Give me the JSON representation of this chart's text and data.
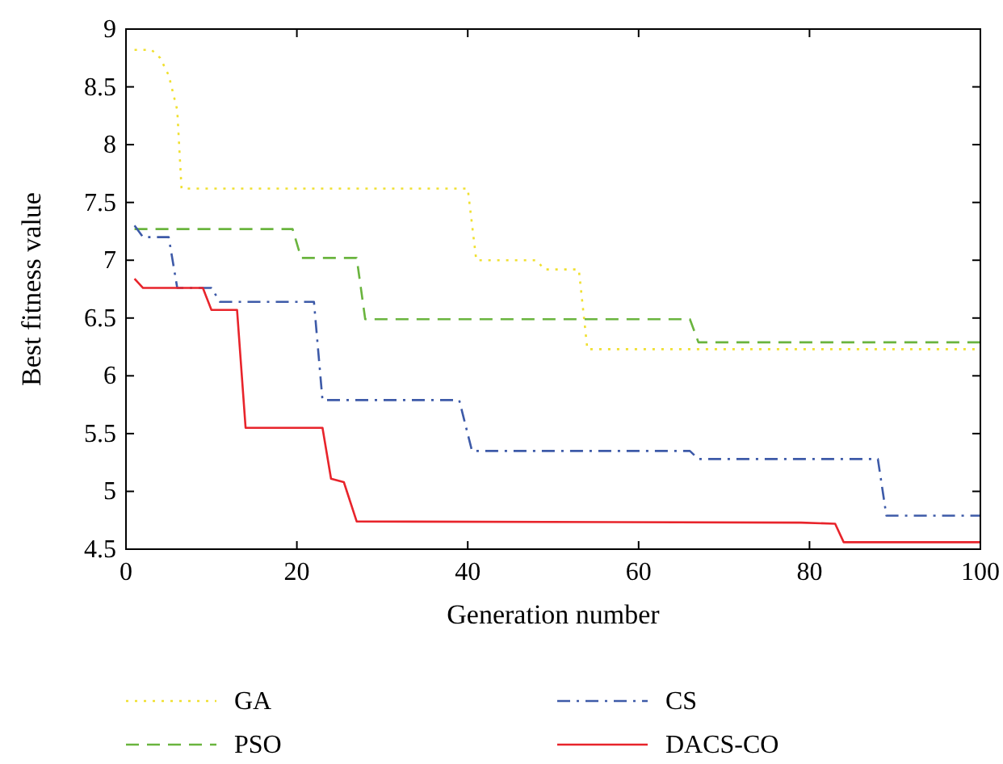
{
  "chart_data": {
    "type": "line",
    "xlabel": "Generation number",
    "ylabel": "Best fitness value",
    "xlim": [
      0,
      100
    ],
    "ylim": [
      4.5,
      9
    ],
    "xticks": [
      0,
      20,
      40,
      60,
      80,
      100
    ],
    "yticks": [
      4.5,
      5,
      5.5,
      6,
      6.5,
      7,
      7.5,
      8,
      8.5,
      9
    ],
    "grid": false,
    "legend": "bottom",
    "series": [
      {
        "name": "GA",
        "color": "#f0e030",
        "line_style": "dotted",
        "x": [
          1,
          3,
          4,
          5,
          6,
          6.5,
          7,
          40,
          41,
          48,
          49,
          53,
          54,
          100
        ],
        "values": [
          8.82,
          8.82,
          8.75,
          8.6,
          8.3,
          7.62,
          7.62,
          7.62,
          7.0,
          7.0,
          6.92,
          6.92,
          6.23,
          6.23
        ]
      },
      {
        "name": "PSO",
        "color": "#6ab43e",
        "line_style": "dashed",
        "x": [
          1,
          19.5,
          20.5,
          27,
          28,
          66,
          67,
          100
        ],
        "values": [
          7.27,
          7.27,
          7.02,
          7.02,
          6.49,
          6.49,
          6.29,
          6.29
        ]
      },
      {
        "name": "CS",
        "color": "#3d5aa8",
        "line_style": "dashdot",
        "x": [
          1,
          2,
          5,
          6,
          10,
          11,
          22,
          23,
          39,
          40.5,
          66,
          67,
          88,
          89,
          100
        ],
        "values": [
          7.3,
          7.2,
          7.2,
          6.76,
          6.76,
          6.64,
          6.64,
          5.79,
          5.79,
          5.35,
          5.35,
          5.28,
          5.28,
          4.79,
          4.79
        ]
      },
      {
        "name": "DACS-CO",
        "color": "#e8242b",
        "line_style": "solid",
        "x": [
          1,
          2,
          9,
          10,
          13,
          14,
          23,
          24,
          25.5,
          27,
          79,
          83,
          84,
          100
        ],
        "values": [
          6.84,
          6.76,
          6.76,
          6.57,
          6.57,
          5.55,
          5.55,
          5.11,
          5.08,
          4.74,
          4.73,
          4.72,
          4.56,
          4.56
        ]
      }
    ]
  }
}
